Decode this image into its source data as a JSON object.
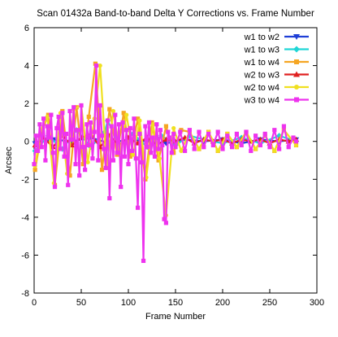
{
  "chart_data": {
    "type": "line",
    "title": "Scan 01432a Band-to-band Delta Y Corrections vs. Frame Number",
    "xlabel": "Frame Number",
    "ylabel": "Arcsec",
    "xlim": [
      0,
      300
    ],
    "ylim": [
      -8,
      6
    ],
    "xticks": [
      0,
      50,
      100,
      150,
      200,
      250,
      300
    ],
    "yticks": [
      -8,
      -6,
      -4,
      -2,
      0,
      2,
      4,
      6
    ],
    "grid": false,
    "legend_position": "top-right",
    "series": [
      {
        "name": "w1 to w2",
        "color": "#1f3fd6",
        "marker": "triangle-down",
        "x": [
          1,
          20,
          40,
          60,
          80,
          100,
          120,
          140,
          160,
          180,
          200,
          220,
          240,
          260,
          278
        ],
        "y": [
          -0.1,
          0.1,
          0.0,
          0.2,
          -0.1,
          0.1,
          0.0,
          -0.1,
          0.1,
          0.0,
          0.1,
          -0.1,
          0.1,
          0.0,
          0.1
        ]
      },
      {
        "name": "w1 to w3",
        "color": "#1fd6d6",
        "marker": "diamond",
        "x": [
          1,
          15,
          30,
          45,
          60,
          75,
          78,
          90,
          105,
          120,
          135,
          150,
          165,
          180,
          200,
          220,
          240,
          260,
          278
        ],
        "y": [
          -0.5,
          0.3,
          -0.4,
          0.6,
          -0.3,
          0.5,
          1.1,
          -0.2,
          0.4,
          -0.3,
          0.3,
          -0.2,
          0.3,
          0.1,
          -0.1,
          0.2,
          -0.1,
          0.3,
          0.0
        ]
      },
      {
        "name": "w1 to w4",
        "color": "#f5a623",
        "marker": "square",
        "x": [
          1,
          8,
          15,
          22,
          30,
          38,
          45,
          52,
          58,
          65,
          72,
          80,
          88,
          95,
          102,
          110,
          118,
          125,
          132,
          140,
          148,
          156,
          165,
          175,
          185,
          195,
          205,
          215,
          225,
          235,
          245,
          255,
          265,
          278
        ],
        "y": [
          -1.5,
          0.5,
          1.4,
          -2.3,
          1.6,
          -1.8,
          1.8,
          -1.2,
          1.3,
          4.1,
          -1.5,
          1.7,
          -0.7,
          1.5,
          -0.8,
          1.2,
          -2.0,
          1.0,
          -1.0,
          0.8,
          -0.6,
          0.6,
          0.5,
          -0.4,
          0.5,
          -0.5,
          0.4,
          -0.3,
          0.5,
          -0.4,
          0.3,
          -0.5,
          0.6,
          -0.2
        ]
      },
      {
        "name": "w2 to w3",
        "color": "#e02020",
        "marker": "triangle-up",
        "x": [
          1,
          10,
          20,
          30,
          40,
          50,
          60,
          70,
          80,
          90,
          100,
          110,
          120,
          130,
          140,
          150,
          160,
          170,
          180,
          190,
          200,
          210,
          220,
          230,
          240,
          250,
          260,
          270,
          278
        ],
        "y": [
          -0.2,
          0.2,
          -0.3,
          0.3,
          -0.2,
          0.2,
          0.4,
          -0.3,
          0.3,
          -0.2,
          0.2,
          -0.1,
          0.2,
          -0.2,
          0.1,
          0.0,
          0.2,
          -0.1,
          0.1,
          0.0,
          0.1,
          -0.1,
          0.1,
          0.0,
          0.1,
          -0.1,
          0.1,
          0.0,
          0.1
        ]
      },
      {
        "name": "w2 to w4",
        "color": "#f0e020",
        "marker": "circle",
        "x": [
          1,
          7,
          14,
          21,
          28,
          35,
          42,
          50,
          57,
          64,
          70,
          77,
          84,
          91,
          98,
          105,
          112,
          119,
          126,
          133,
          140,
          148,
          156,
          165,
          175,
          185,
          195,
          205,
          215,
          225,
          235,
          245,
          255,
          265,
          278
        ],
        "y": [
          -1.3,
          0.6,
          1.3,
          -2.2,
          1.5,
          -1.7,
          1.7,
          1.9,
          -1.1,
          1.2,
          4.0,
          -1.4,
          1.6,
          -0.6,
          1.4,
          -0.7,
          1.1,
          -1.9,
          0.9,
          -0.9,
          -3.9,
          0.7,
          -0.5,
          0.5,
          -0.4,
          0.5,
          -0.5,
          0.4,
          -0.3,
          0.5,
          -0.4,
          0.3,
          -0.5,
          0.6,
          -0.2
        ]
      },
      {
        "name": "w3 to w4",
        "color": "#ee33ee",
        "marker": "square",
        "x": [
          0,
          2,
          4,
          6,
          8,
          10,
          12,
          14,
          16,
          18,
          20,
          22,
          24,
          26,
          28,
          30,
          32,
          34,
          36,
          38,
          40,
          42,
          44,
          46,
          48,
          50,
          52,
          54,
          56,
          58,
          60,
          62,
          64,
          66,
          68,
          70,
          72,
          74,
          76,
          78,
          80,
          82,
          84,
          86,
          88,
          90,
          92,
          94,
          96,
          98,
          100,
          102,
          104,
          106,
          108,
          110,
          112,
          114,
          116,
          118,
          120,
          122,
          124,
          126,
          128,
          130,
          132,
          134,
          136,
          138,
          140,
          142,
          144,
          146,
          148,
          150,
          155,
          160,
          165,
          170,
          175,
          180,
          185,
          190,
          195,
          200,
          205,
          210,
          215,
          220,
          225,
          230,
          235,
          240,
          245,
          250,
          255,
          260,
          265,
          270,
          275,
          278
        ],
        "y": [
          -1.2,
          0.3,
          -0.5,
          0.9,
          -0.3,
          1.2,
          -1.0,
          0.8,
          0.2,
          1.4,
          -0.6,
          -2.4,
          0.7,
          1.3,
          -0.4,
          1.5,
          -0.8,
          0.4,
          -2.3,
          1.6,
          0.1,
          1.8,
          -1.2,
          0.6,
          -1.8,
          1.9,
          -0.3,
          -1.5,
          0.9,
          -0.2,
          1.0,
          -0.9,
          0.5,
          4.0,
          -1.0,
          1.9,
          0.3,
          -0.4,
          -1.4,
          1.1,
          -3.0,
          0.8,
          -1.0,
          1.4,
          -0.6,
          0.9,
          -2.4,
          1.0,
          -0.8,
          0.6,
          -1.2,
          0.7,
          -0.5,
          1.2,
          -0.9,
          -3.5,
          0.4,
          -1.1,
          -6.3,
          0.8,
          -0.3,
          1.0,
          -0.6,
          0.2,
          -0.8,
          0.9,
          -0.4,
          0.6,
          -0.2,
          -4.1,
          -4.3,
          0.5,
          0.2,
          -0.6,
          0.4,
          -0.3,
          0.5,
          -0.5,
          0.6,
          -0.4,
          0.5,
          -0.3,
          0.4,
          -0.2,
          0.5,
          -0.4,
          0.3,
          -0.3,
          0.4,
          -0.2,
          0.5,
          -0.5,
          0.3,
          -0.2,
          0.4,
          -0.3,
          0.6,
          -0.4,
          0.8,
          -0.3,
          0.2,
          0.0
        ]
      }
    ]
  }
}
